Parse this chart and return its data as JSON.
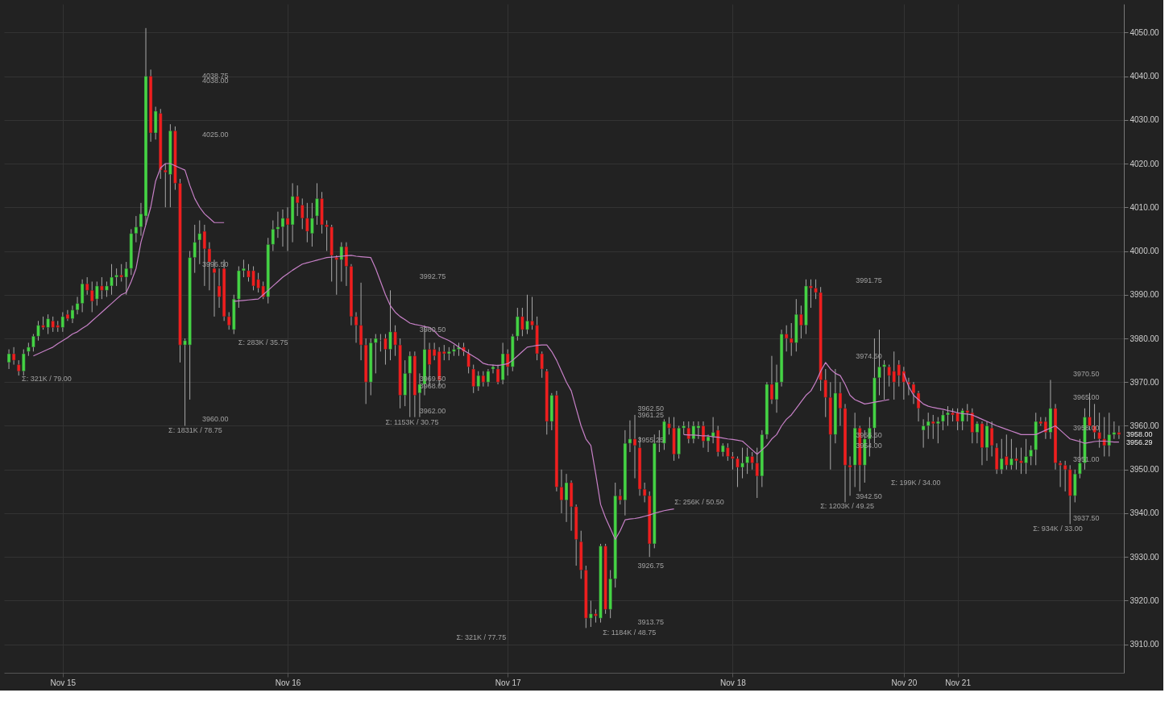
{
  "chart_data": {
    "type": "candlestick",
    "categories": [
      null,
      null,
      null,
      null,
      null,
      null,
      null,
      null,
      null,
      null,
      null,
      "Nov 15",
      null,
      null,
      null,
      null,
      null,
      null,
      null,
      null,
      null,
      null,
      null,
      null,
      null,
      null,
      null,
      null,
      null,
      null,
      null,
      null,
      null,
      null,
      null,
      null,
      null,
      null,
      null,
      null,
      null,
      null,
      null,
      null,
      null,
      null,
      null,
      null,
      null,
      null,
      null,
      null,
      null,
      null,
      null,
      null,
      null,
      "Nov 16",
      null,
      null,
      null,
      null,
      null,
      null,
      null,
      null,
      null,
      null,
      null,
      null,
      null,
      null,
      null,
      null,
      null,
      null,
      null,
      null,
      null,
      null,
      null,
      null,
      null,
      null,
      null,
      null,
      null,
      null,
      null,
      null,
      null,
      null,
      null,
      null,
      null,
      null,
      null,
      null,
      null,
      null,
      null,
      null,
      "Nov 17",
      null,
      null,
      null,
      null,
      null,
      null,
      null,
      null,
      null,
      null,
      null,
      null,
      null,
      null,
      null,
      null,
      null,
      null,
      null,
      null,
      null,
      null,
      null,
      null,
      null,
      null,
      null,
      null,
      null,
      null,
      null,
      null,
      null,
      null,
      null,
      null,
      null,
      null,
      null,
      null,
      null,
      null,
      null,
      null,
      null,
      "Nov 18",
      null,
      null,
      null,
      null,
      null,
      null,
      null,
      null,
      null,
      null,
      null,
      null,
      null,
      null,
      null,
      null,
      null,
      null,
      null,
      null,
      null,
      null,
      null,
      null,
      null,
      null,
      null,
      null,
      null,
      null,
      null,
      null,
      null,
      null,
      "Nov 20",
      null,
      null,
      null,
      null,
      null,
      null,
      null,
      null,
      null,
      null,
      "Nov 21",
      null,
      null,
      null,
      null,
      null,
      null,
      null,
      null,
      null,
      null,
      null,
      null,
      null,
      null,
      null,
      null,
      null,
      null,
      null,
      null,
      null,
      null,
      null,
      null,
      null,
      null,
      null,
      null,
      null,
      null,
      null,
      null,
      null
    ],
    "ohlc": [
      [
        3974.5,
        3977.5,
        3973,
        3976.5
      ],
      [
        3976.5,
        3978,
        3974,
        3975
      ],
      [
        3974,
        3975,
        3971.5,
        3972.5
      ],
      [
        3972.5,
        3977.5,
        3971.5,
        3976.5
      ],
      [
        3977,
        3979,
        3976,
        3978
      ],
      [
        3978,
        3981,
        3977,
        3980.5
      ],
      [
        3980.5,
        3984,
        3979.5,
        3983
      ],
      [
        3983,
        3985,
        3982,
        3982.5
      ],
      [
        3982.5,
        3985.5,
        3981,
        3984.5
      ],
      [
        3984,
        3985,
        3981.5,
        3982.5
      ],
      [
        3983,
        3984,
        3981.5,
        3982.5
      ],
      [
        3982.5,
        3986,
        3981.5,
        3985
      ],
      [
        3985.5,
        3986.5,
        3984,
        3984.5
      ],
      [
        3984.5,
        3987.5,
        3983.5,
        3986.5
      ],
      [
        3986.5,
        3989.5,
        3985.5,
        3988
      ],
      [
        3988,
        3993.5,
        3986,
        3992.5
      ],
      [
        3992.5,
        3994,
        3990,
        3991
      ],
      [
        3991,
        3993,
        3986,
        3988.5
      ],
      [
        3989,
        3993,
        3987.5,
        3992
      ],
      [
        3992,
        3994,
        3989,
        3991
      ],
      [
        3991,
        3993,
        3989.5,
        3992
      ],
      [
        3992,
        3997,
        3990,
        3994
      ],
      [
        3994,
        3996,
        3992,
        3994.5
      ],
      [
        3994.5,
        3997,
        3993,
        3994
      ],
      [
        3994,
        3997.5,
        3990,
        3996
      ],
      [
        3996,
        4005,
        3994.5,
        4004
      ],
      [
        4004,
        4008,
        4002,
        4005.5
      ],
      [
        4005.5,
        4011,
        4003.5,
        4008.5
      ],
      [
        4008,
        4051,
        4006,
        4040
      ],
      [
        4040,
        4041.5,
        4025,
        4027
      ],
      [
        4027,
        4033,
        4025.5,
        4032
      ],
      [
        4031.5,
        4032.5,
        4016.5,
        4018.5
      ],
      [
        4018.5,
        4020,
        4010,
        4018
      ],
      [
        4017.5,
        4029,
        4010,
        4027.5
      ],
      [
        4027.5,
        4028.5,
        4014,
        4015.5
      ],
      [
        4015.5,
        4016.5,
        3974.5,
        3978.5
      ],
      [
        3978.5,
        3980,
        3960,
        3979.5
      ],
      [
        3978.5,
        4000,
        3966,
        3998.5
      ],
      [
        3998.5,
        4006,
        3995,
        4002
      ],
      [
        4002.5,
        4007,
        3997,
        4004
      ],
      [
        4004.5,
        4006,
        3992,
        4000.5
      ],
      [
        4000.5,
        4002,
        3991,
        3997.5
      ],
      [
        3996,
        3998,
        3985,
        3995
      ],
      [
        3992,
        3996,
        3987,
        3989.5
      ],
      [
        3996,
        3998,
        3984,
        3985
      ],
      [
        3985,
        3986,
        3982,
        3983
      ],
      [
        3982,
        3990,
        3981,
        3989
      ],
      [
        3989,
        3996.5,
        3987,
        3995.5
      ],
      [
        3995.5,
        3998,
        3994,
        3996
      ],
      [
        3995.5,
        3997,
        3993,
        3994
      ],
      [
        3995.5,
        3996.5,
        3991,
        3992
      ],
      [
        3993.5,
        3995,
        3990.5,
        3991.5
      ],
      [
        3992,
        3993,
        3989,
        3989.5
      ],
      [
        3989.5,
        4003,
        3988,
        4001.5
      ],
      [
        4001.5,
        4007,
        4000,
        4005
      ],
      [
        4005,
        4009,
        4003,
        4005.5
      ],
      [
        4005.5,
        4009.5,
        4001,
        4007.5
      ],
      [
        4007.5,
        4010,
        4000,
        4006
      ],
      [
        4006,
        4015.5,
        4002,
        4012.5
      ],
      [
        4012.5,
        4015,
        4008,
        4011
      ],
      [
        4010.5,
        4012,
        4005,
        4007.5
      ],
      [
        4007.5,
        4011,
        4002,
        4004.5
      ],
      [
        4004,
        4011,
        4001,
        4007.5
      ],
      [
        4008,
        4015.5,
        4006,
        4012
      ],
      [
        4012,
        4013.5,
        4004,
        4006
      ],
      [
        4006,
        4007,
        4000,
        4005.5
      ],
      [
        4005.5,
        4006,
        3993,
        3999
      ],
      [
        3998.5,
        3999,
        3990,
        3998
      ],
      [
        3998,
        4002,
        3993,
        4001
      ],
      [
        4001,
        4002,
        3992,
        3996.5
      ],
      [
        3996.5,
        3997,
        3983,
        3985
      ],
      [
        3985,
        3986,
        3979,
        3983
      ],
      [
        3983,
        3992.75,
        3975,
        3978.5
      ],
      [
        3978.5,
        3980,
        3965,
        3970
      ],
      [
        3970,
        3980,
        3967,
        3979
      ],
      [
        3979,
        3981,
        3972,
        3980
      ],
      [
        3979.5,
        3981,
        3977,
        3979.5
      ],
      [
        3980,
        3981,
        3974,
        3977.5
      ],
      [
        3977.5,
        3991,
        3975,
        3981.5
      ],
      [
        3981.5,
        3983,
        3976,
        3978.5
      ],
      [
        3978.5,
        3980,
        3964,
        3967
      ],
      [
        3967,
        3975,
        3964.5,
        3972
      ],
      [
        3972,
        3977,
        3962,
        3976
      ],
      [
        3976,
        3977,
        3962,
        3967
      ],
      [
        3967.5,
        3972,
        3962,
        3969.5
      ],
      [
        3969.5,
        3983,
        3967,
        3977.5
      ],
      [
        3977.5,
        3979,
        3969,
        3974
      ],
      [
        3977.5,
        3979,
        3975,
        3976
      ],
      [
        3977,
        3978,
        3969,
        3970.5
      ],
      [
        3977,
        3978.5,
        3975,
        3976.5
      ],
      [
        3976.5,
        3978,
        3975,
        3977
      ],
      [
        3977,
        3978.5,
        3976,
        3977.5
      ],
      [
        3977.5,
        3979,
        3976,
        3978
      ],
      [
        3978,
        3979,
        3976,
        3977
      ],
      [
        3976.5,
        3977.5,
        3972,
        3973.5
      ],
      [
        3973,
        3974,
        3967.5,
        3969
      ],
      [
        3969,
        3972.5,
        3968,
        3971.5
      ],
      [
        3971.5,
        3972.5,
        3969,
        3970
      ],
      [
        3970,
        3973,
        3969,
        3972.5
      ],
      [
        3973,
        3974,
        3972,
        3973.5
      ],
      [
        3973,
        3974,
        3969.5,
        3970
      ],
      [
        3970.5,
        3979,
        3969.5,
        3976.5
      ],
      [
        3976.5,
        3977.5,
        3971.5,
        3973.5
      ],
      [
        3973.5,
        3981,
        3972.5,
        3980.5
      ],
      [
        3980.5,
        3987,
        3979.5,
        3985
      ],
      [
        3985,
        3987,
        3980.5,
        3982
      ],
      [
        3982,
        3990,
        3981,
        3984
      ],
      [
        3984,
        3989.5,
        3982,
        3983
      ],
      [
        3983,
        3985,
        3975,
        3976.5
      ],
      [
        3976.5,
        3977,
        3971,
        3973
      ],
      [
        3972.5,
        3973,
        3958,
        3961
      ],
      [
        3961,
        3967.5,
        3959,
        3967
      ],
      [
        3967,
        3968,
        3945,
        3946
      ],
      [
        3946,
        3950,
        3940,
        3943
      ],
      [
        3943,
        3949,
        3938,
        3947
      ],
      [
        3947,
        3947.5,
        3936,
        3941.5
      ],
      [
        3941.5,
        3942,
        3928,
        3934
      ],
      [
        3933.5,
        3936,
        3925,
        3927
      ],
      [
        3927,
        3928,
        3913.75,
        3916
      ],
      [
        3916,
        3920,
        3914,
        3917
      ],
      [
        3917,
        3918,
        3915,
        3916.5
      ],
      [
        3916,
        3933,
        3915,
        3932.5
      ],
      [
        3932.5,
        3933,
        3917,
        3918
      ],
      [
        3918,
        3927,
        3916,
        3925
      ],
      [
        3925,
        3947,
        3923,
        3944
      ],
      [
        3944,
        3945.5,
        3942,
        3943
      ],
      [
        3943,
        3959,
        3939.5,
        3956
      ],
      [
        3956,
        3961.25,
        3954,
        3957
      ],
      [
        3957,
        3962.5,
        3948,
        3955.5
      ],
      [
        3955,
        3957.5,
        3944,
        3945.5
      ],
      [
        3945.5,
        3947,
        3942.5,
        3944
      ],
      [
        3944,
        3945,
        3930,
        3933
      ],
      [
        3933,
        3958,
        3932,
        3956
      ],
      [
        3956,
        3959,
        3954,
        3956
      ],
      [
        3956,
        3961.5,
        3954.5,
        3961
      ],
      [
        3960.5,
        3962,
        3958,
        3959.5
      ],
      [
        3959.5,
        3962,
        3952,
        3953.5
      ],
      [
        3953.5,
        3960,
        3952.5,
        3959.5
      ],
      [
        3959.5,
        3961,
        3958,
        3960
      ],
      [
        3959.5,
        3961,
        3956,
        3957
      ],
      [
        3957,
        3961,
        3956,
        3960
      ],
      [
        3959.5,
        3961,
        3957,
        3960
      ],
      [
        3960,
        3961,
        3955,
        3956.5
      ],
      [
        3956.5,
        3958,
        3954,
        3957.5
      ],
      [
        3957.5,
        3962,
        3956,
        3958.5
      ],
      [
        3959,
        3960,
        3953,
        3954
      ],
      [
        3954,
        3956,
        3953,
        3955.5
      ],
      [
        3955,
        3956,
        3952,
        3953
      ],
      [
        3953,
        3954,
        3950,
        3952.5
      ],
      [
        3952.5,
        3953,
        3946,
        3950.5
      ],
      [
        3950.5,
        3955,
        3948,
        3951.5
      ],
      [
        3951.5,
        3955,
        3949,
        3953
      ],
      [
        3953,
        3954,
        3950,
        3951.5
      ],
      [
        3951.5,
        3955,
        3943.5,
        3948.5
      ],
      [
        3948.5,
        3959,
        3946,
        3958
      ],
      [
        3958,
        3970,
        3957,
        3969.5
      ],
      [
        3969.5,
        3976,
        3965,
        3966
      ],
      [
        3966,
        3974,
        3963,
        3970
      ],
      [
        3970,
        3982,
        3969,
        3981
      ],
      [
        3981,
        3983,
        3977,
        3980
      ],
      [
        3980,
        3983.5,
        3976,
        3979
      ],
      [
        3979,
        3989,
        3977,
        3985.5
      ],
      [
        3985.5,
        3987.5,
        3980,
        3983
      ],
      [
        3983,
        3993.5,
        3981,
        3992
      ],
      [
        3992,
        3993.5,
        3987,
        3991.5
      ],
      [
        3991.5,
        3993.5,
        3989,
        3990.5
      ],
      [
        3990.5,
        3991.75,
        3968,
        3970.5
      ],
      [
        3970.5,
        3973,
        3962,
        3966.5
      ],
      [
        3966.5,
        3970,
        3950,
        3958
      ],
      [
        3958,
        3973,
        3956,
        3967.5
      ],
      [
        3967.5,
        3970,
        3960,
        3964
      ],
      [
        3964,
        3965,
        3942.5,
        3951
      ],
      [
        3951,
        3953,
        3944,
        3950.5
      ],
      [
        3951,
        3963,
        3946,
        3959.5
      ],
      [
        3959.5,
        3960,
        3945,
        3951
      ],
      [
        3951,
        3959,
        3947,
        3957
      ],
      [
        3957,
        3962,
        3953,
        3959.5
      ],
      [
        3959.5,
        3980,
        3956,
        3971
      ],
      [
        3971,
        3982,
        3967,
        3973.5
      ],
      [
        3973.5,
        3975,
        3966,
        3974
      ],
      [
        3973.5,
        3974,
        3969,
        3971.5
      ],
      [
        3972.5,
        3977,
        3966,
        3970
      ],
      [
        3974,
        3975,
        3969,
        3971.5
      ],
      [
        3972.5,
        3973.5,
        3966,
        3970
      ],
      [
        3970,
        3971,
        3967,
        3969.5
      ],
      [
        3969.5,
        3970,
        3965,
        3967.5
      ],
      [
        3967.5,
        3968,
        3961,
        3964
      ],
      [
        3959,
        3961.5,
        3955,
        3960
      ],
      [
        3960,
        3963,
        3957,
        3961
      ],
      [
        3961,
        3962.5,
        3957,
        3960.5
      ],
      [
        3960.5,
        3962,
        3956,
        3961
      ],
      [
        3961,
        3963.5,
        3959,
        3962.5
      ],
      [
        3962.5,
        3964.5,
        3960,
        3963
      ],
      [
        3963,
        3964,
        3961,
        3962.5
      ],
      [
        3963,
        3964,
        3959,
        3961
      ],
      [
        3961,
        3964,
        3959,
        3963.5
      ],
      [
        3963.5,
        3965,
        3961,
        3963
      ],
      [
        3963,
        3964,
        3956,
        3958.5
      ],
      [
        3958.5,
        3961,
        3956,
        3960.5
      ],
      [
        3960.5,
        3961,
        3951,
        3955
      ],
      [
        3955,
        3961,
        3952,
        3960
      ],
      [
        3959.5,
        3961,
        3953,
        3955.5
      ],
      [
        3955,
        3956,
        3949,
        3950
      ],
      [
        3950,
        3957,
        3949,
        3952.5
      ],
      [
        3953,
        3958,
        3950,
        3951
      ],
      [
        3951,
        3957,
        3950,
        3952.5
      ],
      [
        3952.5,
        3955,
        3950,
        3952
      ],
      [
        3952,
        3955,
        3949,
        3951.5
      ],
      [
        3951.5,
        3957,
        3949,
        3953
      ],
      [
        3953,
        3955.5,
        3951,
        3954.5
      ],
      [
        3954.5,
        3963,
        3951,
        3961
      ],
      [
        3961,
        3962,
        3960,
        3960.5
      ],
      [
        3961,
        3962,
        3957,
        3958.5
      ],
      [
        3958.5,
        3970.5,
        3957,
        3964
      ],
      [
        3964,
        3965,
        3950,
        3951.5
      ],
      [
        3951.5,
        3952,
        3946,
        3951
      ],
      [
        3951,
        3952,
        3945,
        3950
      ],
      [
        3950,
        3951,
        3937.5,
        3944
      ],
      [
        3944,
        3950,
        3942.5,
        3949
      ],
      [
        3949,
        3957,
        3948,
        3951.5
      ],
      [
        3951.5,
        3964,
        3950,
        3962
      ],
      [
        3962,
        3967.5,
        3959,
        3960
      ],
      [
        3960,
        3965,
        3957,
        3958.5
      ],
      [
        3958.5,
        3963,
        3955,
        3957
      ],
      [
        3957,
        3962,
        3953,
        3955.5
      ],
      [
        3955.5,
        3963,
        3953,
        3958
      ],
      [
        3958,
        3961,
        3957,
        3958.5
      ],
      [
        3958.5,
        3960,
        3957,
        3958
      ]
    ],
    "series": [
      {
        "type": "line",
        "color": "#c780c7",
        "values": [
          null,
          null,
          null,
          null,
          null,
          3976,
          3976.5,
          3977,
          3977.5,
          3978,
          3978.8,
          3979.5,
          3980.2,
          3981,
          3981.5,
          3982.3,
          3983,
          3984,
          3985,
          3986,
          3987,
          3988,
          3989,
          3990,
          3990.5,
          3993,
          3996,
          4002,
          4006,
          4010,
          4016,
          4019,
          4020,
          4020,
          4019.5,
          4019,
          4018.5,
          4015,
          4012,
          4010,
          4008.5,
          4007.5,
          4006.5,
          4006.5,
          4006.5,
          null,
          3988.5,
          3988.6,
          3988.7,
          3988.8,
          3988.9,
          3989,
          3990,
          3991,
          3992,
          3993,
          3994,
          3994.8,
          3995.6,
          3996.3,
          3997,
          3997.3,
          3997.6,
          3997.9,
          3998.2,
          3998.5,
          3998.6,
          3998.7,
          3998.8,
          3998.9,
          3999,
          3998.8,
          3998.7,
          3998.6,
          3998.5,
          3996,
          3993,
          3990,
          3987.5,
          3986,
          3985,
          3984.3,
          3983.5,
          3983.2,
          3983,
          3982.7,
          3982.5,
          3981.7,
          3980.5,
          3980,
          3979.5,
          3978.8,
          3978,
          3977.3,
          3976.6,
          3975.9,
          3975.2,
          3974.3,
          3974,
          3973.9,
          3973.8,
          3974,
          3974.2,
          3975,
          3976,
          3977,
          3978,
          3978.2,
          3978.4,
          3978.5,
          3978.5,
          3977,
          3975,
          3972.5,
          3970,
          3968,
          3964,
          3960,
          3957,
          3955.5,
          3949,
          3942,
          3939,
          3936.5,
          3934,
          3936,
          3938.5,
          3938.7,
          3938.8,
          3939,
          3939.3,
          3939.6,
          3940,
          3940.3,
          3940.6,
          3940.8,
          3941,
          null,
          3958,
          3957.9,
          3957.9,
          3957.8,
          3957.7,
          3957.7,
          3957.5,
          3957.4,
          3957.2,
          3957,
          3956.9,
          3956.7,
          3956.5,
          3955.5,
          3954.5,
          3953.5,
          3954.5,
          3955.5,
          3957,
          3958,
          3960,
          3961.5,
          3962.5,
          3964,
          3965.5,
          3967,
          3968,
          3970,
          3972.5,
          3974.5,
          3973,
          3972,
          3971.5,
          3969.5,
          3967,
          3966,
          3965.5,
          3965,
          3965.2,
          3965.4,
          3965.6,
          3965.8,
          3966,
          null,
          null,
          3972,
          3969,
          3967,
          3966,
          3965,
          3964.5,
          3964.2,
          3964,
          3963.8,
          3963.5,
          3963.3,
          3963,
          3962.8,
          3962.7,
          3962.5,
          3962,
          3961.5,
          3961,
          3960.5,
          3960,
          3959.6,
          3959.2,
          3958.8,
          3958.4,
          3958,
          3958,
          3958,
          3958,
          3958.5,
          3959,
          3959.5,
          3960,
          3959,
          3958,
          3957,
          3956.7,
          3956.4,
          3956,
          3956.2,
          3956.4,
          3956.5,
          3956.5,
          3956.4,
          3956.3,
          3956.3
        ]
      }
    ],
    "ylim": [
      3903.5,
      4056.5
    ],
    "yticks": [
      {
        "value": 3910,
        "label": "3910.00"
      },
      {
        "value": 3920,
        "label": "3920.00"
      },
      {
        "value": 3930,
        "label": "3930.00"
      },
      {
        "value": 3940,
        "label": "3940.00"
      },
      {
        "value": 3950,
        "label": "3950.00"
      },
      {
        "value": 3960,
        "label": "3960.00"
      },
      {
        "value": 3970,
        "label": "3970.00"
      },
      {
        "value": 3980,
        "label": "3980.00"
      },
      {
        "value": 3990,
        "label": "3990.00"
      },
      {
        "value": 4000,
        "label": "4000.00"
      },
      {
        "value": 4010,
        "label": "4010.00"
      },
      {
        "value": 4020,
        "label": "4020.00"
      },
      {
        "value": 4030,
        "label": "4030.00"
      },
      {
        "value": 4040,
        "label": "4040.00"
      },
      {
        "value": 4050,
        "label": "4050.00"
      }
    ],
    "grid": true,
    "annotations": [
      "Σ: 321K / 79.00",
      "4038.75",
      "4038.00",
      "4025.00",
      "3996.50",
      "3960.00",
      "Σ: 1831K / 78.75",
      "Σ: 283K / 35.75",
      "3992.75",
      "3980.50",
      "3969.50",
      "3968.00",
      "3962.00",
      "Σ: 1153K / 30.75",
      "Σ: 321K / 77.75",
      "3962.50",
      "3961.25",
      "3955.25",
      "3926.75",
      "3913.75",
      "Σ: 1184K / 48.75",
      "Σ: 256K / 50.50",
      "3991.75",
      "3974.50",
      "3956.50",
      "3954.00",
      "3942.50",
      "Σ: 1203K / 49.25",
      "Σ: 199K / 34.00",
      "3970.50",
      "3965.00",
      "3958.00",
      "3951.00",
      "3937.50",
      "Σ: 934K / 33.00",
      "3958.00",
      "3956.29"
    ]
  }
}
